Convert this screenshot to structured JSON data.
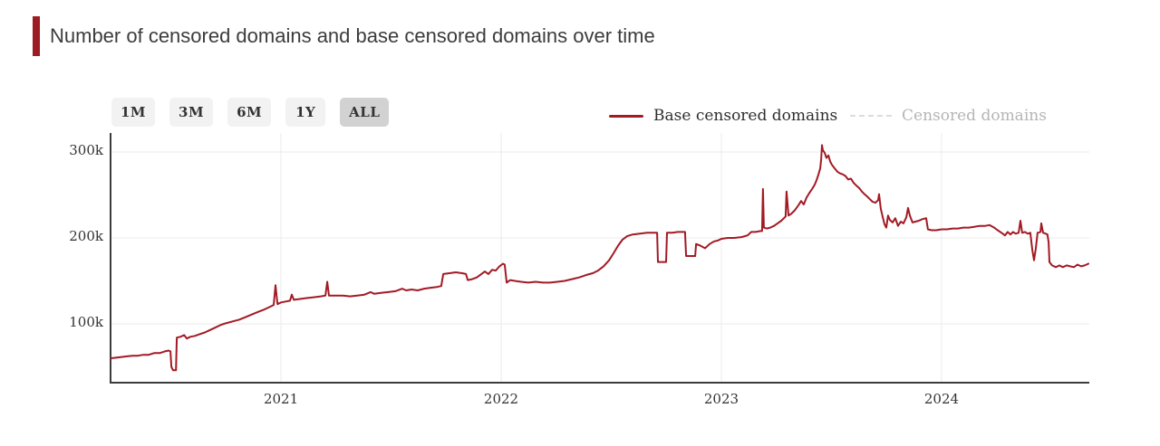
{
  "title": {
    "text": "Number of censored domains and base censored domains over time"
  },
  "range_selector": {
    "buttons": [
      {
        "label": "1M",
        "selected": false
      },
      {
        "label": "3M",
        "selected": false
      },
      {
        "label": "6M",
        "selected": false
      },
      {
        "label": "1Y",
        "selected": false
      },
      {
        "label": "ALL",
        "selected": true
      }
    ]
  },
  "legend": {
    "items": [
      {
        "label": "Base censored domains",
        "swatch": "solid-line",
        "color": "#A21A24",
        "enabled": true
      },
      {
        "label": "Censored domains",
        "swatch": "dashed-line",
        "color": "#DCDCDC",
        "enabled": false
      }
    ]
  },
  "colors": {
    "accent_bar": "#9D1B22",
    "series_line": "#A21A24",
    "grid": "#EBEBEB",
    "axis": "#3C3C3C",
    "button_bg": "#F2F2F2",
    "button_bg_selected": "#D2D2D2",
    "button_text": "#333333",
    "legend_disabled_text": "#B5B5B5",
    "legend_disabled_swatch": "#DCDCDC",
    "title_text": "#3C3C3C",
    "axis_label": "#333333"
  },
  "chart_data": {
    "type": "line",
    "title": "Number of censored domains and base censored domains over time",
    "xlabel": "",
    "ylabel": "",
    "grid": true,
    "legend_position": "top-right",
    "x_domain": [
      2020.226,
      2024.671
    ],
    "y_domain": [
      31.6,
      322.1
    ],
    "x_ticks": [
      {
        "t": 2021,
        "label": "2021"
      },
      {
        "t": 2022,
        "label": "2022"
      },
      {
        "t": 2023,
        "label": "2023"
      },
      {
        "t": 2024,
        "label": "2024"
      }
    ],
    "y_ticks": [
      {
        "v": 300,
        "label": "300k"
      },
      {
        "v": 200,
        "label": "200k"
      },
      {
        "v": 100,
        "label": "100k"
      }
    ],
    "y_unit": "thousands of domains",
    "series": [
      {
        "name": "Base censored domains",
        "color": "#A21A24",
        "visible": true,
        "points": [
          [
            2020.226,
            60
          ],
          [
            2020.259,
            61
          ],
          [
            2020.292,
            62
          ],
          [
            2020.325,
            63
          ],
          [
            2020.35,
            63
          ],
          [
            2020.374,
            64
          ],
          [
            2020.399,
            64
          ],
          [
            2020.424,
            66
          ],
          [
            2020.449,
            66
          ],
          [
            2020.473,
            68
          ],
          [
            2020.49,
            69
          ],
          [
            2020.498,
            68
          ],
          [
            2020.502,
            50
          ],
          [
            2020.51,
            46
          ],
          [
            2020.523,
            46
          ],
          [
            2020.527,
            84
          ],
          [
            2020.543,
            85
          ],
          [
            2020.56,
            87
          ],
          [
            2020.572,
            83
          ],
          [
            2020.588,
            85
          ],
          [
            2020.609,
            86
          ],
          [
            2020.63,
            88
          ],
          [
            2020.654,
            90
          ],
          [
            2020.679,
            93
          ],
          [
            2020.704,
            96
          ],
          [
            2020.728,
            99
          ],
          [
            2020.753,
            101
          ],
          [
            2020.782,
            103
          ],
          [
            2020.811,
            105
          ],
          [
            2020.84,
            108
          ],
          [
            2020.868,
            111
          ],
          [
            2020.897,
            114
          ],
          [
            2020.926,
            117
          ],
          [
            2020.951,
            120
          ],
          [
            2020.967,
            122
          ],
          [
            2020.975,
            145
          ],
          [
            2020.984,
            123
          ],
          [
            2021.0,
            125
          ],
          [
            2021.021,
            126
          ],
          [
            2021.041,
            127
          ],
          [
            2021.049,
            134
          ],
          [
            2021.058,
            128
          ],
          [
            2021.086,
            129
          ],
          [
            2021.115,
            130
          ],
          [
            2021.148,
            131
          ],
          [
            2021.181,
            132
          ],
          [
            2021.202,
            133
          ],
          [
            2021.21,
            149
          ],
          [
            2021.218,
            133
          ],
          [
            2021.247,
            133
          ],
          [
            2021.28,
            133
          ],
          [
            2021.313,
            132
          ],
          [
            2021.346,
            133
          ],
          [
            2021.379,
            134
          ],
          [
            2021.407,
            137
          ],
          [
            2021.424,
            135
          ],
          [
            2021.453,
            136
          ],
          [
            2021.486,
            137
          ],
          [
            2021.519,
            138
          ],
          [
            2021.551,
            141
          ],
          [
            2021.568,
            139
          ],
          [
            2021.593,
            140
          ],
          [
            2021.621,
            139
          ],
          [
            2021.65,
            141
          ],
          [
            2021.679,
            142
          ],
          [
            2021.708,
            143
          ],
          [
            2021.728,
            144
          ],
          [
            2021.737,
            158
          ],
          [
            2021.765,
            159
          ],
          [
            2021.794,
            160
          ],
          [
            2021.823,
            159
          ],
          [
            2021.84,
            158
          ],
          [
            2021.848,
            151
          ],
          [
            2021.868,
            152
          ],
          [
            2021.889,
            154
          ],
          [
            2021.91,
            158
          ],
          [
            2021.926,
            161
          ],
          [
            2021.942,
            158
          ],
          [
            2021.959,
            163
          ],
          [
            2021.975,
            162
          ],
          [
            2021.992,
            167
          ],
          [
            2022.008,
            170
          ],
          [
            2022.016,
            169
          ],
          [
            2022.025,
            148
          ],
          [
            2022.041,
            151
          ],
          [
            2022.062,
            150
          ],
          [
            2022.091,
            149
          ],
          [
            2022.123,
            148
          ],
          [
            2022.156,
            149
          ],
          [
            2022.19,
            148
          ],
          [
            2022.222,
            148
          ],
          [
            2022.255,
            149
          ],
          [
            2022.288,
            150
          ],
          [
            2022.321,
            152
          ],
          [
            2022.354,
            154
          ],
          [
            2022.387,
            157
          ],
          [
            2022.416,
            159
          ],
          [
            2022.44,
            162
          ],
          [
            2022.465,
            167
          ],
          [
            2022.49,
            174
          ],
          [
            2022.51,
            182
          ],
          [
            2022.531,
            191
          ],
          [
            2022.551,
            198
          ],
          [
            2022.572,
            202
          ],
          [
            2022.597,
            204
          ],
          [
            2022.63,
            205
          ],
          [
            2022.663,
            206
          ],
          [
            2022.695,
            206
          ],
          [
            2022.708,
            206
          ],
          [
            2022.712,
            172
          ],
          [
            2022.749,
            172
          ],
          [
            2022.753,
            206
          ],
          [
            2022.778,
            206
          ],
          [
            2022.802,
            207
          ],
          [
            2022.835,
            207
          ],
          [
            2022.84,
            179
          ],
          [
            2022.881,
            179
          ],
          [
            2022.885,
            193
          ],
          [
            2022.905,
            191
          ],
          [
            2022.926,
            188
          ],
          [
            2022.947,
            193
          ],
          [
            2022.967,
            196
          ],
          [
            2022.984,
            197
          ],
          [
            2023.0,
            199
          ],
          [
            2023.029,
            200
          ],
          [
            2023.058,
            200
          ],
          [
            2023.091,
            201
          ],
          [
            2023.119,
            203
          ],
          [
            2023.136,
            207
          ],
          [
            2023.156,
            207
          ],
          [
            2023.177,
            208
          ],
          [
            2023.185,
            208
          ],
          [
            2023.189,
            257
          ],
          [
            2023.193,
            212
          ],
          [
            2023.206,
            211
          ],
          [
            2023.222,
            212
          ],
          [
            2023.239,
            214
          ],
          [
            2023.255,
            217
          ],
          [
            2023.272,
            220
          ],
          [
            2023.288,
            224
          ],
          [
            2023.292,
            225
          ],
          [
            2023.296,
            254
          ],
          [
            2023.305,
            226
          ],
          [
            2023.317,
            228
          ],
          [
            2023.333,
            232
          ],
          [
            2023.35,
            238
          ],
          [
            2023.362,
            243
          ],
          [
            2023.374,
            239
          ],
          [
            2023.387,
            247
          ],
          [
            2023.399,
            252
          ],
          [
            2023.412,
            257
          ],
          [
            2023.424,
            262
          ],
          [
            2023.432,
            267
          ],
          [
            2023.44,
            273
          ],
          [
            2023.449,
            281
          ],
          [
            2023.453,
            291
          ],
          [
            2023.457,
            308
          ],
          [
            2023.461,
            302
          ],
          [
            2023.469,
            299
          ],
          [
            2023.477,
            293
          ],
          [
            2023.486,
            296
          ],
          [
            2023.494,
            289
          ],
          [
            2023.502,
            285
          ],
          [
            2023.514,
            281
          ],
          [
            2023.527,
            277
          ],
          [
            2023.539,
            275
          ],
          [
            2023.551,
            274
          ],
          [
            2023.564,
            272
          ],
          [
            2023.576,
            268
          ],
          [
            2023.588,
            269
          ],
          [
            2023.601,
            264
          ],
          [
            2023.613,
            261
          ],
          [
            2023.626,
            258
          ],
          [
            2023.638,
            254
          ],
          [
            2023.65,
            251
          ],
          [
            2023.663,
            248
          ],
          [
            2023.675,
            245
          ],
          [
            2023.687,
            242
          ],
          [
            2023.7,
            241
          ],
          [
            2023.712,
            244
          ],
          [
            2023.716,
            251
          ],
          [
            2023.724,
            234
          ],
          [
            2023.733,
            224
          ],
          [
            2023.741,
            216
          ],
          [
            2023.749,
            212
          ],
          [
            2023.757,
            226
          ],
          [
            2023.765,
            221
          ],
          [
            2023.778,
            218
          ],
          [
            2023.79,
            223
          ],
          [
            2023.802,
            214
          ],
          [
            2023.815,
            219
          ],
          [
            2023.827,
            217
          ],
          [
            2023.84,
            224
          ],
          [
            2023.848,
            235
          ],
          [
            2023.856,
            226
          ],
          [
            2023.868,
            218
          ],
          [
            2023.881,
            219
          ],
          [
            2023.897,
            220
          ],
          [
            2023.914,
            222
          ],
          [
            2023.93,
            223
          ],
          [
            2023.938,
            210
          ],
          [
            2023.955,
            209
          ],
          [
            2023.975,
            209
          ],
          [
            2024.0,
            210
          ],
          [
            2024.025,
            210
          ],
          [
            2024.049,
            211
          ],
          [
            2024.074,
            211
          ],
          [
            2024.099,
            212
          ],
          [
            2024.123,
            212
          ],
          [
            2024.148,
            213
          ],
          [
            2024.173,
            214
          ],
          [
            2024.198,
            214
          ],
          [
            2024.218,
            215
          ],
          [
            2024.239,
            212
          ],
          [
            2024.255,
            209
          ],
          [
            2024.272,
            206
          ],
          [
            2024.288,
            203
          ],
          [
            2024.3,
            207
          ],
          [
            2024.313,
            204
          ],
          [
            2024.325,
            207
          ],
          [
            2024.337,
            205
          ],
          [
            2024.35,
            206
          ],
          [
            2024.358,
            220
          ],
          [
            2024.366,
            206
          ],
          [
            2024.379,
            207
          ],
          [
            2024.391,
            205
          ],
          [
            2024.403,
            206
          ],
          [
            2024.412,
            186
          ],
          [
            2024.42,
            174
          ],
          [
            2024.428,
            188
          ],
          [
            2024.436,
            206
          ],
          [
            2024.449,
            207
          ],
          [
            2024.453,
            217
          ],
          [
            2024.461,
            206
          ],
          [
            2024.473,
            205
          ],
          [
            2024.481,
            204
          ],
          [
            2024.486,
            195
          ],
          [
            2024.49,
            172
          ],
          [
            2024.502,
            168
          ],
          [
            2024.519,
            166
          ],
          [
            2024.535,
            168
          ],
          [
            2024.551,
            166
          ],
          [
            2024.568,
            168
          ],
          [
            2024.584,
            167
          ],
          [
            2024.601,
            166
          ],
          [
            2024.617,
            169
          ],
          [
            2024.634,
            167
          ],
          [
            2024.65,
            168
          ],
          [
            2024.667,
            170
          ]
        ]
      },
      {
        "name": "Censored domains",
        "color": "#DCDCDC",
        "visible": false,
        "points": []
      }
    ]
  }
}
